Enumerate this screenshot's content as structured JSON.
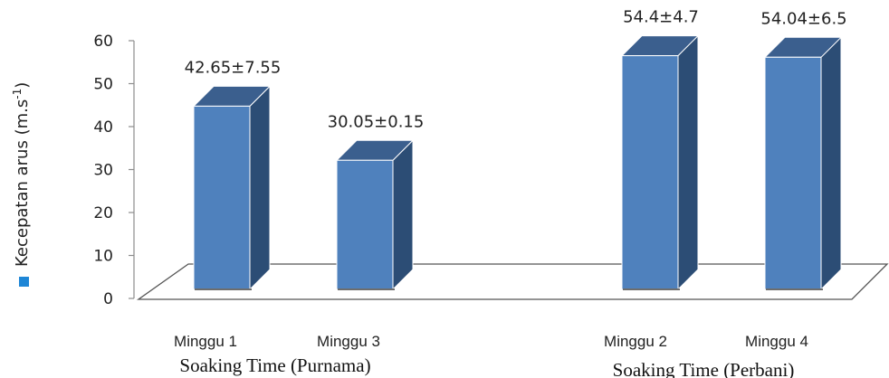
{
  "chart_data": {
    "type": "bar",
    "style": "3d-column",
    "categories": [
      "Minggu 1",
      "Minggu 3",
      "Minggu 2",
      "Minggu 4"
    ],
    "values": [
      42.65,
      30.05,
      54.4,
      54.04
    ],
    "data_labels": [
      "42.65±7.55",
      "30.05±0.15",
      "54.4±4.7",
      "54.04±6.5"
    ],
    "groups": [
      {
        "label": "Soaking Time (Purnama)",
        "categories": [
          "Minggu 1",
          "Minggu 3"
        ]
      },
      {
        "label": "Soaking Time (Perbani)",
        "categories": [
          "Minggu 2",
          "Minggu 4"
        ]
      }
    ],
    "ylabel": "Kecepatan arus (m.s",
    "ylabel_superscript": "-1",
    "ylabel_close": ")",
    "ylim": [
      0,
      60
    ],
    "yticks": [
      0,
      10,
      20,
      30,
      40,
      50,
      60
    ],
    "grid": false,
    "legend": {
      "position": "left",
      "marker_color": "#1E86D6"
    },
    "colors": {
      "bar_front": "#4F81BD",
      "bar_side": "#2C4D75",
      "bar_top": "#3B5F8E",
      "floor": "#FFFFFF",
      "axis": "#8C8C8C"
    }
  }
}
